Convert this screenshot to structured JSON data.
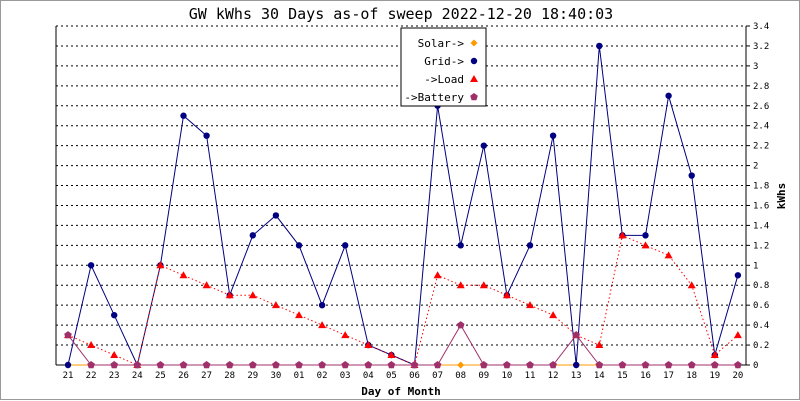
{
  "chart_data": {
    "type": "line",
    "title": "GW kWhs 30 Days as-of sweep 2022-12-20 18:40:03",
    "xlabel": "Day of Month",
    "ylabel": "kWhs",
    "ylim": [
      0,
      3.4
    ],
    "yticks": [
      "0",
      "0.2",
      "0.4",
      "0.6",
      "0.8",
      "1",
      "1.2",
      "1.4",
      "1.6",
      "1.8",
      "2",
      "2.2",
      "2.4",
      "2.6",
      "2.8",
      "3",
      "3.2",
      "3.4"
    ],
    "grid": true,
    "legend_position": "top-center",
    "categories": [
      "21",
      "22",
      "23",
      "24",
      "25",
      "26",
      "27",
      "28",
      "29",
      "30",
      "01",
      "02",
      "03",
      "04",
      "05",
      "06",
      "07",
      "08",
      "09",
      "10",
      "11",
      "12",
      "13",
      "14",
      "15",
      "16",
      "17",
      "18",
      "19",
      "20"
    ],
    "series": [
      {
        "name": "Solar->",
        "color": "#ff9900",
        "marker": "diamond",
        "line": "solid",
        "values": [
          0,
          0,
          0,
          0,
          0,
          0,
          0,
          0,
          0,
          0,
          0,
          0,
          0,
          0,
          0,
          0,
          0,
          0,
          0,
          0,
          0,
          0,
          0,
          0,
          0,
          0,
          0,
          0,
          0,
          0
        ]
      },
      {
        "name": "Grid->",
        "color": "#000080",
        "marker": "circle",
        "line": "solid",
        "values": [
          0,
          1.0,
          0.5,
          0,
          1.0,
          2.5,
          2.3,
          0.7,
          1.3,
          1.5,
          1.2,
          0.6,
          1.2,
          0.2,
          0.1,
          0,
          2.6,
          1.2,
          2.2,
          0.7,
          1.2,
          2.3,
          0,
          3.2,
          1.3,
          1.3,
          2.7,
          1.9,
          0.1,
          0.9
        ]
      },
      {
        "name": "->Load",
        "color": "#ff0000",
        "marker": "triangle",
        "line": "dotted",
        "values": [
          0.3,
          0.2,
          0.1,
          0,
          1.0,
          0.9,
          0.8,
          0.7,
          0.7,
          0.6,
          0.5,
          0.4,
          0.3,
          0.2,
          0.1,
          0,
          0.9,
          0.8,
          0.8,
          0.7,
          0.6,
          0.5,
          0.3,
          0.2,
          1.3,
          1.2,
          1.1,
          0.8,
          0.1,
          0.3
        ]
      },
      {
        "name": "->Battery",
        "color": "#a0306a",
        "marker": "pentagon",
        "line": "solid",
        "values": [
          0.3,
          0,
          0,
          0,
          0,
          0,
          0,
          0,
          0,
          0,
          0,
          0,
          0,
          0,
          0,
          0,
          0,
          0.4,
          0,
          0,
          0,
          0,
          0.3,
          0,
          0,
          0,
          0,
          0,
          0,
          0
        ]
      }
    ]
  }
}
